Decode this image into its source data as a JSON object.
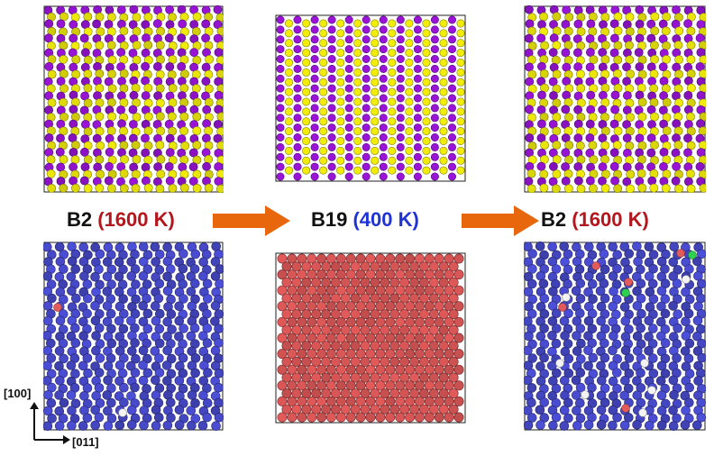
{
  "stages": [
    {
      "phase": "B2",
      "temp": "(1600 K)",
      "temp_color": "#b3171d"
    },
    {
      "phase": "B19",
      "temp": "(400 K)",
      "temp_color": "#1f33d6"
    },
    {
      "phase": "B2",
      "temp": "(1600 K)",
      "temp_color": "#b3171d"
    }
  ],
  "colors": {
    "atom_purple": "#9a14d8",
    "atom_yellow": "#f2ec0a",
    "atom_blue": "#4c4fd8",
    "atom_red": "#e35a5a",
    "atom_green": "#2ed14f",
    "atom_white": "#f3f3f3",
    "arrow": "#e8670c"
  },
  "axes": {
    "vertical": "[100]",
    "horizontal": "[011]"
  }
}
